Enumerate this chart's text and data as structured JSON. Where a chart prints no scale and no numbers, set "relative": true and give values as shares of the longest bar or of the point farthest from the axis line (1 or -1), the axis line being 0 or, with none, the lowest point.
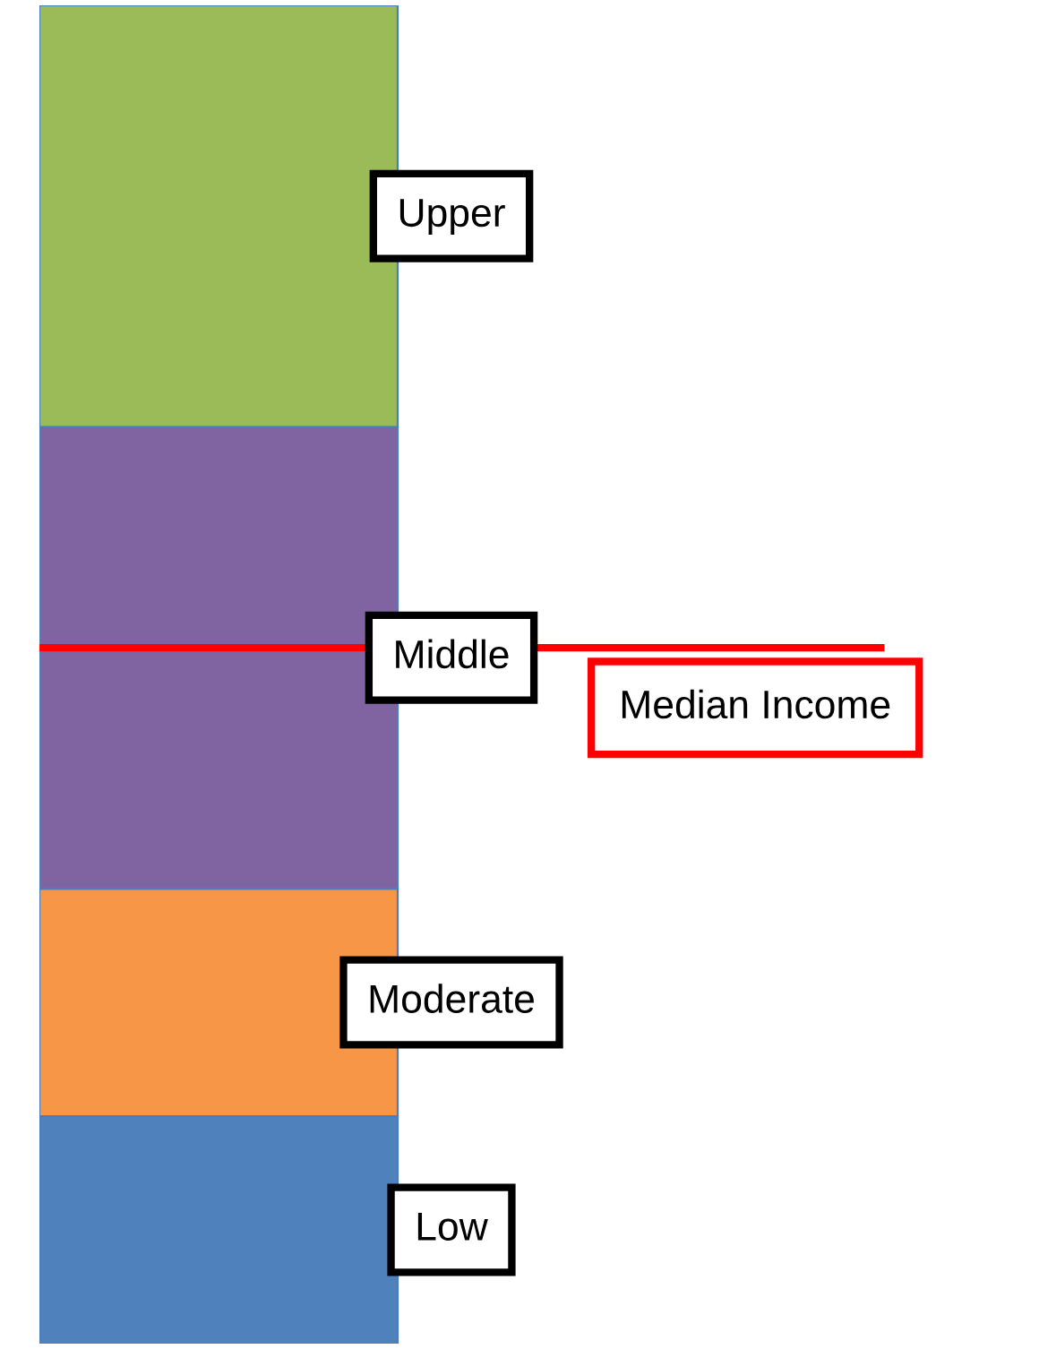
{
  "chart_data": {
    "type": "bar",
    "stacked": true,
    "relative": true,
    "categories": [
      null
    ],
    "series": [
      {
        "name": "Low",
        "color": "#4f81bd",
        "values": [
          0.17
        ]
      },
      {
        "name": "Moderate",
        "color": "#f79646",
        "values": [
          0.17
        ]
      },
      {
        "name": "Middle",
        "color": "#8064a2",
        "values": [
          0.345
        ]
      },
      {
        "name": "Upper",
        "color": "#9bbb59",
        "values": [
          0.315
        ]
      }
    ],
    "ref_lines": [
      {
        "axis": "y",
        "value": 0.52,
        "label": "Median Income",
        "color": "#ff0000"
      }
    ],
    "legend": false
  }
}
